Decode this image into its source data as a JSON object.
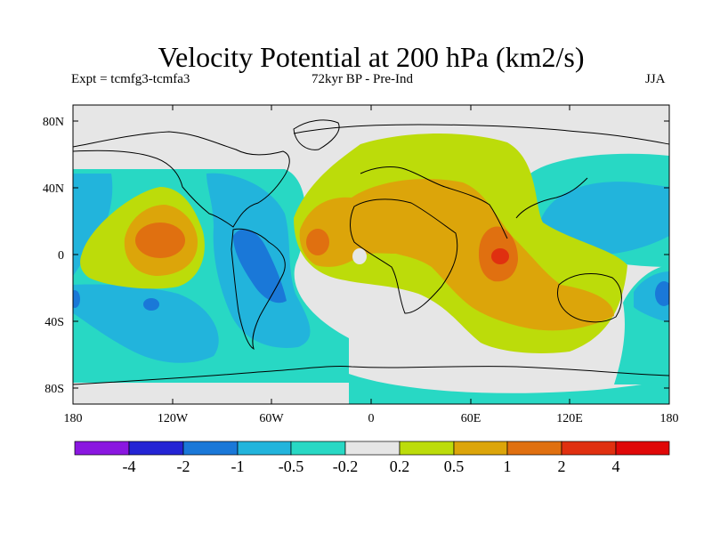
{
  "figure": {
    "title": "Velocity Potential at 200 hPa (km2/s)",
    "left_subtitle": "Expt = tcmfg3-tcmfa3",
    "center_subtitle": "72kyr BP - Pre-Ind",
    "right_subtitle": "JJA"
  },
  "axes": {
    "lat_ticks": [
      "80N",
      "40N",
      "0",
      "40S",
      "80S"
    ],
    "lon_ticks": [
      "180",
      "120W",
      "60W",
      "0",
      "60E",
      "120E",
      "180"
    ]
  },
  "colorbar": {
    "labels": [
      "-4",
      "-2",
      "-1",
      "-0.5",
      "-0.2",
      "0.2",
      "0.5",
      "1",
      "2",
      "4"
    ],
    "colors": [
      "#8a17e0",
      "#2424d4",
      "#1a78d8",
      "#22b4dc",
      "#28d8c4",
      "#e6e6e6",
      "#bcdc0a",
      "#dca50a",
      "#e07010",
      "#e03010",
      "#e00808"
    ]
  },
  "field_colors": {
    "blue_1": "#22b4dc",
    "blue_2": "#1a78d8",
    "cyan": "#28d8c4",
    "neutral": "#e6e6e6",
    "yellow_green": "#bcdc0a",
    "orange_1": "#dca50a",
    "orange_2": "#e07010",
    "red_1": "#e03010"
  }
}
